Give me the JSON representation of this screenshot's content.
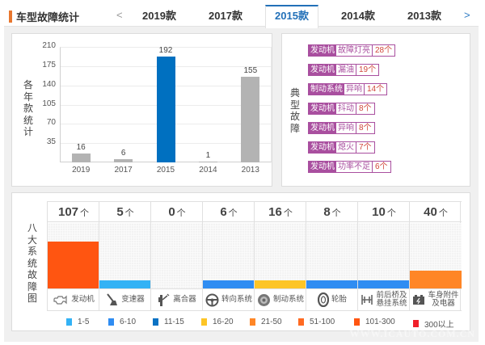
{
  "header": {
    "title": "车型故障统计",
    "prev_label": "<",
    "next_label": ">",
    "year_tabs": [
      {
        "label": "2019款",
        "active": false
      },
      {
        "label": "2017款",
        "active": false
      },
      {
        "label": "2015款",
        "active": true
      },
      {
        "label": "2014款",
        "active": false
      },
      {
        "label": "2013款",
        "active": false
      }
    ]
  },
  "colors": {
    "accent_orange": "#e8772e",
    "active_blue": "#2270b8",
    "bar_gray": "#b3b3b3",
    "bar_active": "#0070c0",
    "fault_purple": "#a94f9f",
    "fault_count": "#d0473b"
  },
  "year_chart": {
    "side_label": [
      "各",
      "年",
      "款",
      "统",
      "计"
    ]
  },
  "chart_data": {
    "type": "bar",
    "title": "各年款统计",
    "categories": [
      "2019",
      "2017",
      "2015",
      "2014",
      "2013"
    ],
    "values": [
      16,
      6,
      192,
      1,
      155
    ],
    "highlight": "2015",
    "yticks": [
      35,
      70,
      105,
      140,
      175,
      210
    ],
    "ylim": [
      0,
      210
    ],
    "xlabel": "",
    "ylabel": "",
    "grid": true
  },
  "typical_faults": {
    "side_label": [
      "典",
      "型",
      "故",
      "障"
    ],
    "items": [
      {
        "system": "发动机",
        "symptom": "故障灯亮",
        "count": "28个"
      },
      {
        "system": "发动机",
        "symptom": "漏油",
        "count": "19个"
      },
      {
        "system": "制动系统",
        "symptom": "异响",
        "count": "14个"
      },
      {
        "system": "发动机",
        "symptom": "抖动",
        "count": "8个"
      },
      {
        "system": "发动机",
        "symptom": "异响",
        "count": "8个"
      },
      {
        "system": "发动机",
        "symptom": "熄火",
        "count": "7个"
      },
      {
        "system": "发动机",
        "symptom": "功率不足",
        "count": "6个"
      }
    ]
  },
  "eight_systems": {
    "side_label": [
      "八",
      "大",
      "系",
      "统",
      "故",
      "障",
      "图"
    ],
    "unit": "个",
    "max_scale": 150,
    "systems": [
      {
        "name": "发动机",
        "name2": "",
        "count": 107,
        "color": "#ff5511",
        "icon": "engine-icon"
      },
      {
        "name": "变速器",
        "name2": "",
        "count": 5,
        "color": "#33b2f5",
        "icon": "gear-shift-icon"
      },
      {
        "name": "离合器",
        "name2": "",
        "count": 0,
        "color": "#33b2f5",
        "icon": "clutch-pedal-icon"
      },
      {
        "name": "转向系统",
        "name2": "",
        "count": 6,
        "color": "#2f8df2",
        "icon": "steering-wheel-icon"
      },
      {
        "name": "制动系统",
        "name2": "",
        "count": 16,
        "color": "#fdc526",
        "icon": "brake-disc-icon"
      },
      {
        "name": "轮胎",
        "name2": "",
        "count": 8,
        "color": "#2f8df2",
        "icon": "tire-icon"
      },
      {
        "name": "前后桥及",
        "name2": "悬挂系统",
        "count": 10,
        "color": "#2f8df2",
        "icon": "suspension-icon"
      },
      {
        "name": "车身附件",
        "name2": "及电器",
        "count": 40,
        "color": "#ff8626",
        "icon": "battery-icon"
      }
    ],
    "legend": [
      {
        "label": "1-5",
        "color": "#33b2f5"
      },
      {
        "label": "6-10",
        "color": "#2f8df2"
      },
      {
        "label": "11-15",
        "color": "#0a72c4"
      },
      {
        "label": "16-20",
        "color": "#fdc526"
      },
      {
        "label": "21-50",
        "color": "#ff8626"
      },
      {
        "label": "51-100",
        "color": "#ff6a22"
      },
      {
        "label": "101-300",
        "color": "#ff5511"
      },
      {
        "label": "300以上",
        "color": "#f0202b"
      }
    ]
  },
  "watermark": "WWW.ICAUTO.COM.CN"
}
